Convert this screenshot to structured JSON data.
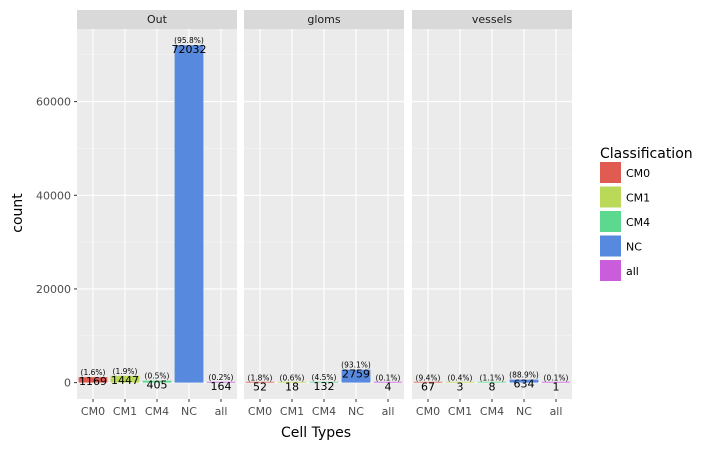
{
  "chart_data": {
    "type": "bar",
    "title": "",
    "xlabel": "Cell Types",
    "ylabel": "count",
    "ylim": [
      -3500,
      75500
    ],
    "yticks": [
      0,
      20000,
      40000,
      60000
    ],
    "tick_labels": [
      "0",
      "20000",
      "40000",
      "60000"
    ],
    "categories": [
      "CM0",
      "CM1",
      "CM4",
      "NC",
      "all"
    ],
    "grid": true,
    "legend": {
      "title": "Classification",
      "placement": "right",
      "entries": [
        {
          "label": "CM0",
          "color": "#e05c52"
        },
        {
          "label": "CM1",
          "color": "#bbd958"
        },
        {
          "label": "CM4",
          "color": "#5cd88f"
        },
        {
          "label": "NC",
          "color": "#5789de"
        },
        {
          "label": "all",
          "color": "#c95ddb"
        }
      ]
    },
    "facets": [
      {
        "name": "Out",
        "values": [
          1169,
          1447,
          405,
          72032,
          164
        ],
        "count_labels": [
          "1169",
          "1447",
          "405",
          "72032",
          "164"
        ],
        "percent_labels": [
          "(1.6%)",
          "(1.9%)",
          "(0.5%)",
          "(95.8%)",
          "(0.2%)"
        ]
      },
      {
        "name": "gloms",
        "values": [
          52,
          18,
          132,
          2759,
          4
        ],
        "count_labels": [
          "52",
          "18",
          "132",
          "2759",
          "4"
        ],
        "percent_labels": [
          "(1.8%)",
          "(0.6%)",
          "(4.5%)",
          "(93.1%)",
          "(0.1%)"
        ]
      },
      {
        "name": "vessels",
        "values": [
          67,
          3,
          8,
          634,
          1
        ],
        "count_labels": [
          "67",
          "3",
          "8",
          "634",
          "1"
        ],
        "percent_labels": [
          "(9.4%)",
          "(0.4%)",
          "(1.1%)",
          "(88.9%)",
          "(0.1%)"
        ]
      }
    ]
  }
}
